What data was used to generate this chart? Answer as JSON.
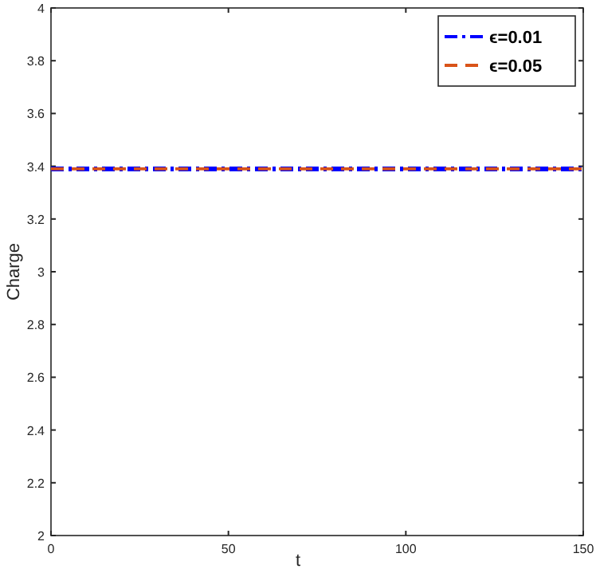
{
  "chart_data": {
    "type": "line",
    "xlabel": "t",
    "ylabel": "Charge",
    "x": [
      0,
      150
    ],
    "series": [
      {
        "name": "ϵ=0.01",
        "color": "#0000ff",
        "values": [
          3.39,
          3.39
        ],
        "line_style": "dashdot"
      },
      {
        "name": "ϵ=0.05",
        "color": "#d95319",
        "values": [
          3.39,
          3.39
        ],
        "line_style": "dashed"
      }
    ],
    "xlim": [
      0,
      150
    ],
    "xticks": [
      0,
      50,
      100,
      150
    ],
    "ylim": [
      2,
      4
    ],
    "yticks": [
      2,
      2.2,
      2.4,
      2.6,
      2.8,
      3,
      3.2,
      3.4,
      3.6,
      3.8,
      4
    ],
    "grid": false,
    "legend": "top right"
  }
}
